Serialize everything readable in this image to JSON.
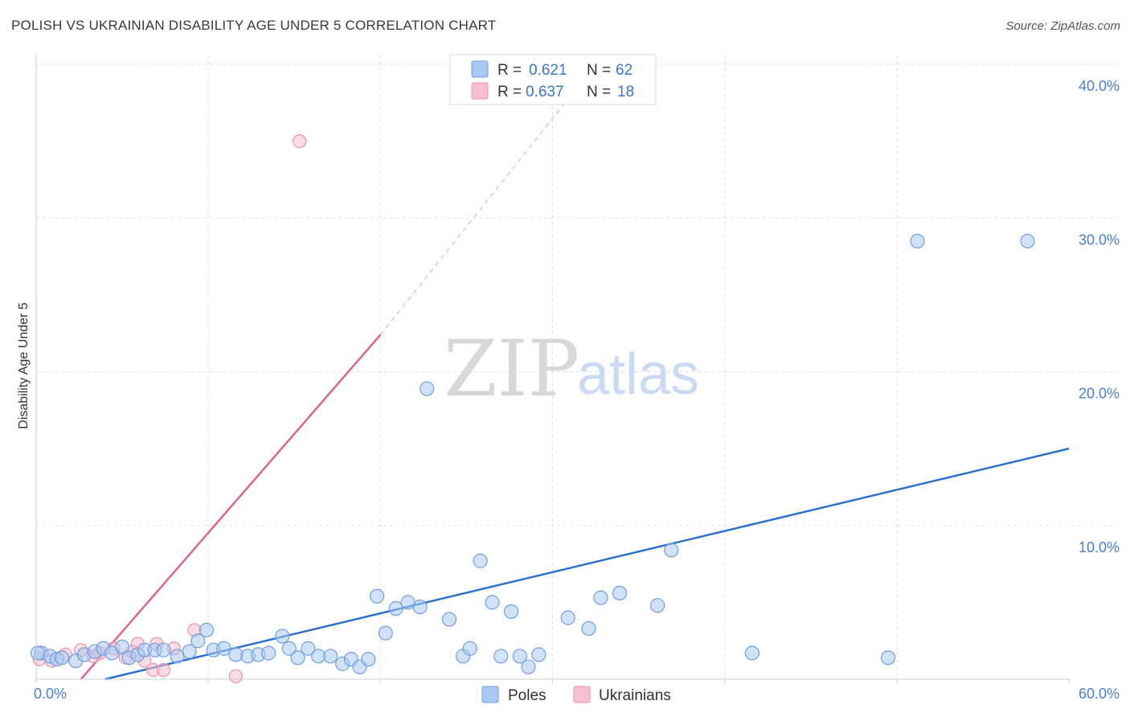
{
  "title": "POLISH VS UKRAINIAN DISABILITY AGE UNDER 5 CORRELATION CHART",
  "source": "Source: ZipAtlas.com",
  "watermark": {
    "zip": "ZIP",
    "atlas": "atlas"
  },
  "colors": {
    "poles_fill": "#a9c8f2",
    "poles_stroke": "#6f9fdc",
    "poles_line": "#2b6fce",
    "ukr_fill": "#f7c0d0",
    "ukr_stroke": "#e892ae",
    "ukr_line": "#e0638a",
    "grid": "#dddddd",
    "tick": "#4a7fd0"
  },
  "legend": {
    "rows": [
      {
        "r_label": "R =",
        "r_value": "0.621",
        "n_label": "N =",
        "n_value": "62"
      },
      {
        "r_label": "R =",
        "r_value": "0.637",
        "n_label": "N =",
        "n_value": "18"
      }
    ]
  },
  "chart_data": {
    "type": "scatter",
    "title": "POLISH VS UKRAINIAN DISABILITY AGE UNDER 5 CORRELATION CHART",
    "xlabel": "",
    "ylabel": "Disability Age Under 5",
    "xlim": [
      0,
      60
    ],
    "ylim": [
      0,
      40
    ],
    "x_tick_labels": [
      "0.0%",
      "60.0%"
    ],
    "y_tick_labels": [
      "10.0%",
      "20.0%",
      "30.0%",
      "40.0%"
    ],
    "y_ticks": [
      10,
      20,
      30,
      40
    ],
    "legend_position": "bottom-center",
    "series": [
      {
        "name": "Poles",
        "r": 0.621,
        "n": 62,
        "points": [
          [
            0.3,
            1.7
          ],
          [
            0.8,
            1.5
          ],
          [
            1.2,
            1.3
          ],
          [
            1.5,
            1.4
          ],
          [
            2.3,
            1.2
          ],
          [
            2.8,
            1.6
          ],
          [
            3.4,
            1.8
          ],
          [
            3.9,
            2.0
          ],
          [
            4.4,
            1.7
          ],
          [
            5.0,
            2.1
          ],
          [
            5.4,
            1.4
          ],
          [
            5.9,
            1.6
          ],
          [
            6.3,
            1.9
          ],
          [
            6.9,
            1.9
          ],
          [
            7.4,
            1.9
          ],
          [
            8.2,
            1.5
          ],
          [
            8.9,
            1.8
          ],
          [
            9.4,
            2.5
          ],
          [
            9.9,
            3.2
          ],
          [
            10.3,
            1.9
          ],
          [
            10.9,
            2.0
          ],
          [
            11.6,
            1.6
          ],
          [
            12.3,
            1.5
          ],
          [
            12.9,
            1.6
          ],
          [
            13.5,
            1.7
          ],
          [
            14.3,
            2.8
          ],
          [
            14.7,
            2.0
          ],
          [
            15.2,
            1.4
          ],
          [
            15.8,
            2.0
          ],
          [
            16.4,
            1.5
          ],
          [
            17.1,
            1.5
          ],
          [
            17.8,
            1.0
          ],
          [
            18.3,
            1.3
          ],
          [
            18.8,
            0.8
          ],
          [
            19.3,
            1.3
          ],
          [
            19.8,
            5.4
          ],
          [
            20.3,
            3.0
          ],
          [
            20.9,
            4.6
          ],
          [
            21.6,
            5.0
          ],
          [
            22.7,
            18.9
          ],
          [
            22.3,
            4.7
          ],
          [
            24.0,
            3.9
          ],
          [
            24.8,
            1.5
          ],
          [
            25.2,
            2.0
          ],
          [
            25.8,
            7.7
          ],
          [
            26.5,
            5.0
          ],
          [
            27.0,
            1.5
          ],
          [
            27.6,
            4.4
          ],
          [
            28.1,
            1.5
          ],
          [
            28.6,
            0.8
          ],
          [
            29.2,
            1.6
          ],
          [
            30.9,
            4.0
          ],
          [
            32.1,
            3.3
          ],
          [
            32.8,
            5.3
          ],
          [
            33.9,
            5.6
          ],
          [
            36.1,
            4.8
          ],
          [
            36.9,
            8.4
          ],
          [
            41.6,
            1.7
          ],
          [
            49.5,
            1.4
          ],
          [
            51.2,
            28.5
          ],
          [
            57.6,
            28.5
          ],
          [
            0.1,
            1.7
          ]
        ],
        "trend": {
          "x": [
            4.0,
            60.0
          ],
          "y": [
            0.0,
            15.0
          ]
        }
      },
      {
        "name": "Ukrainians",
        "r": 0.637,
        "n": 18,
        "points": [
          [
            0.2,
            1.3
          ],
          [
            0.9,
            1.2
          ],
          [
            1.7,
            1.6
          ],
          [
            2.6,
            1.9
          ],
          [
            3.3,
            1.5
          ],
          [
            3.7,
            1.7
          ],
          [
            4.5,
            2.0
          ],
          [
            5.2,
            1.4
          ],
          [
            5.6,
            1.8
          ],
          [
            5.9,
            2.3
          ],
          [
            6.3,
            1.2
          ],
          [
            6.8,
            0.6
          ],
          [
            7.0,
            2.3
          ],
          [
            7.4,
            0.6
          ],
          [
            8.0,
            2.0
          ],
          [
            9.2,
            3.2
          ],
          [
            11.6,
            0.2
          ],
          [
            15.3,
            35.0
          ]
        ],
        "trend": {
          "x": [
            2.6,
            20.0
          ],
          "y": [
            0.0,
            22.4
          ]
        },
        "trend_dashed": {
          "x": [
            20.0,
            32.5
          ],
          "y": [
            22.4,
            40.0
          ]
        }
      }
    ]
  },
  "bottom_legend": {
    "poles": "Poles",
    "ukrainians": "Ukrainians"
  }
}
